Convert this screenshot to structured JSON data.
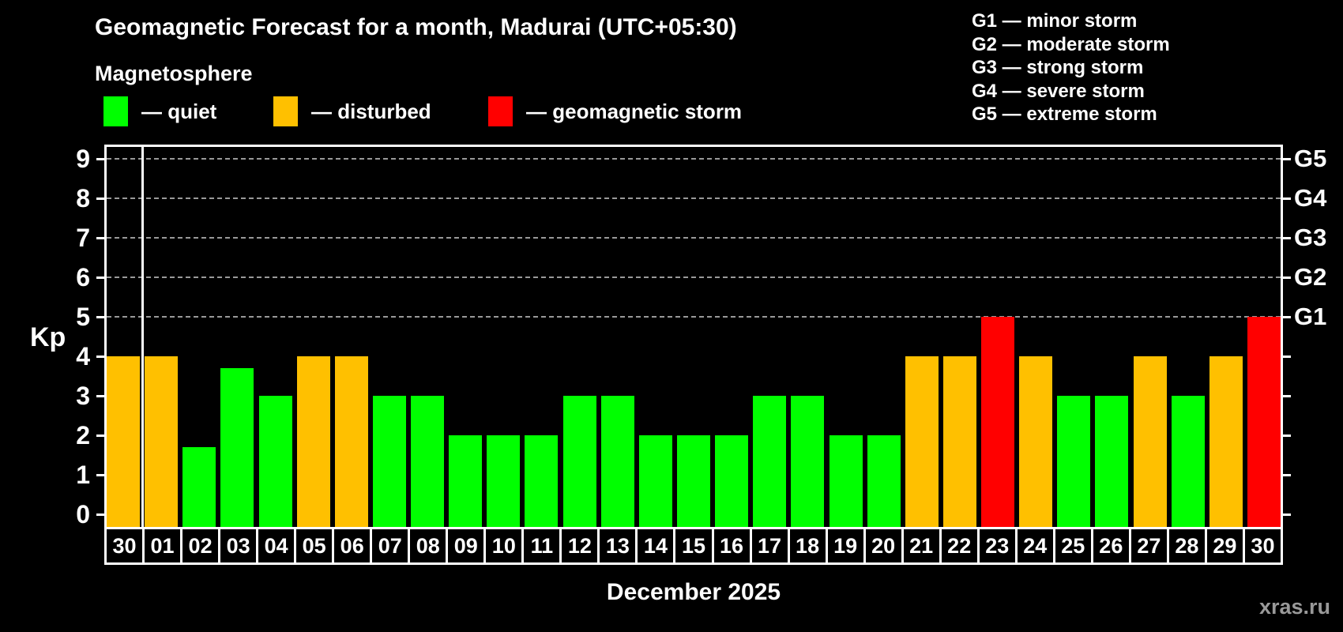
{
  "header": {
    "title": "Geomagnetic Forecast for a month, Madurai (UTC+05:30)",
    "subtitle": "Magnetosphere"
  },
  "legend": {
    "items": [
      {
        "key": "quiet",
        "label": "— quiet"
      },
      {
        "key": "disturbed",
        "label": "— disturbed"
      },
      {
        "key": "storm",
        "label": "— geomagnetic storm"
      }
    ]
  },
  "storm_scale": {
    "legend": [
      {
        "text": "G1 — minor storm"
      },
      {
        "text": "G2 — moderate storm"
      },
      {
        "text": "G3 — strong storm"
      },
      {
        "text": "G4 — severe storm"
      },
      {
        "text": "G5 — extreme storm"
      }
    ],
    "axis_labels": [
      {
        "code": "G1",
        "kp": 5
      },
      {
        "code": "G2",
        "kp": 6
      },
      {
        "code": "G3",
        "kp": 7
      },
      {
        "code": "G4",
        "kp": 8
      },
      {
        "code": "G5",
        "kp": 9
      }
    ]
  },
  "axes": {
    "y_label": "Kp",
    "y_ticks": [
      0,
      1,
      2,
      3,
      4,
      5,
      6,
      7,
      8,
      9
    ],
    "x_label": "December 2025"
  },
  "chart_data": {
    "type": "bar",
    "title": "Geomagnetic Forecast for a month, Madurai (UTC+05:30)",
    "xlabel": "December 2025",
    "ylabel": "Kp",
    "ylim": [
      0,
      9
    ],
    "grid": "dashed horizontal at Kp 5-9 only",
    "legend_position": "top",
    "gridlines_kp": [
      5,
      6,
      7,
      8,
      9
    ],
    "separator_after_index": 0,
    "categories": [
      "30",
      "01",
      "02",
      "03",
      "04",
      "05",
      "06",
      "07",
      "08",
      "09",
      "10",
      "11",
      "12",
      "13",
      "14",
      "15",
      "16",
      "17",
      "18",
      "19",
      "20",
      "21",
      "22",
      "23",
      "24",
      "25",
      "26",
      "27",
      "28",
      "29",
      "30"
    ],
    "values": [
      4,
      4,
      1.7,
      3.7,
      3,
      4,
      4,
      3,
      3,
      2,
      2,
      2,
      3,
      3,
      2,
      2,
      2,
      3,
      3,
      2,
      2,
      4,
      4,
      5,
      4,
      3,
      3,
      4,
      3,
      4,
      5
    ],
    "statuses": [
      "disturbed",
      "disturbed",
      "quiet",
      "quiet",
      "quiet",
      "disturbed",
      "disturbed",
      "quiet",
      "quiet",
      "quiet",
      "quiet",
      "quiet",
      "quiet",
      "quiet",
      "quiet",
      "quiet",
      "quiet",
      "quiet",
      "quiet",
      "quiet",
      "quiet",
      "disturbed",
      "disturbed",
      "storm",
      "disturbed",
      "quiet",
      "quiet",
      "disturbed",
      "quiet",
      "disturbed",
      "storm"
    ]
  },
  "footer": {
    "watermark": "xras.ru"
  },
  "colors": {
    "quiet": "#00ff00",
    "disturbed": "#ffc000",
    "storm": "#ff0000",
    "background": "#000000",
    "axis": "#ffffff",
    "grid": "#999999",
    "watermark": "#999999"
  }
}
